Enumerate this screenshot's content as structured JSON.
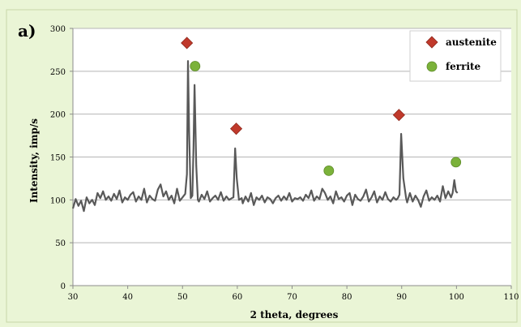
{
  "panel_label": "a)",
  "chart_data": {
    "type": "line",
    "title": "",
    "xlabel": "2 theta, degrees",
    "ylabel": "Intensity, imp/s",
    "xlim": [
      30,
      110
    ],
    "ylim": [
      0,
      300
    ],
    "x_ticks": [
      30,
      40,
      50,
      60,
      70,
      80,
      90,
      100,
      110
    ],
    "y_ticks": [
      0,
      50,
      100,
      150,
      200,
      250,
      300
    ],
    "grid": "horizontal",
    "legend_position": "top-right",
    "background_color": "#eaf5d6",
    "plot_background_color": "#ffffff",
    "series": [
      {
        "color": "#595959",
        "x": [
          30,
          30.5,
          31,
          31.5,
          32,
          32.5,
          33,
          33.5,
          34,
          34.5,
          35,
          35.5,
          36,
          36.5,
          37,
          37.5,
          38,
          38.5,
          39,
          39.5,
          40,
          40.5,
          41,
          41.5,
          42,
          42.5,
          43,
          43.5,
          44,
          44.5,
          45,
          45.5,
          46,
          46.5,
          47,
          47.5,
          48,
          48.5,
          49,
          49.5,
          50,
          50.5,
          50.8,
          51,
          51.2,
          51.5,
          51.8,
          52,
          52.2,
          52.5,
          52.8,
          53,
          53.5,
          54,
          54.5,
          55,
          55.5,
          56,
          56.5,
          57,
          57.5,
          58,
          58.5,
          59,
          59.3,
          59.6,
          59.9,
          60.3,
          60.8,
          61,
          61.5,
          62,
          62.5,
          63,
          63.5,
          64,
          64.5,
          65,
          65.5,
          66,
          66.5,
          67,
          67.5,
          68,
          68.5,
          69,
          69.5,
          70,
          70.5,
          71,
          71.5,
          72,
          72.5,
          73,
          73.5,
          74,
          74.5,
          75,
          75.5,
          76,
          76.5,
          77,
          77.5,
          78,
          78.5,
          79,
          79.5,
          80,
          80.5,
          81,
          81.5,
          82,
          82.5,
          83,
          83.5,
          84,
          84.5,
          85,
          85.5,
          86,
          86.5,
          87,
          87.5,
          88,
          88.5,
          89,
          89.3,
          89.6,
          89.9,
          90.3,
          90.8,
          91,
          91.5,
          92,
          92.5,
          93,
          93.5,
          94,
          94.5,
          95,
          95.5,
          96,
          96.5,
          97,
          97.5,
          98,
          98.5,
          99,
          99.3,
          99.6,
          99.9,
          100.2
        ],
        "y": [
          90,
          101,
          93,
          99,
          87,
          103,
          96,
          100,
          94,
          108,
          102,
          110,
          100,
          104,
          99,
          107,
          101,
          111,
          97,
          103,
          100,
          106,
          109,
          98,
          104,
          100,
          113,
          97,
          105,
          101,
          99,
          112,
          118,
          104,
          110,
          100,
          105,
          96,
          113,
          99,
          103,
          107,
          130,
          262,
          180,
          102,
          105,
          160,
          234,
          140,
          100,
          98,
          106,
          101,
          110,
          98,
          102,
          105,
          100,
          109,
          99,
          104,
          100,
          102,
          103,
          160,
          125,
          100,
          102,
          96,
          104,
          98,
          108,
          94,
          103,
          100,
          105,
          97,
          103,
          101,
          96,
          102,
          105,
          99,
          104,
          100,
          108,
          98,
          102,
          101,
          103,
          99,
          106,
          102,
          111,
          99,
          104,
          101,
          113,
          108,
          100,
          104,
          96,
          110,
          101,
          103,
          98,
          105,
          108,
          94,
          106,
          101,
          99,
          104,
          112,
          98,
          103,
          110,
          97,
          104,
          100,
          109,
          101,
          98,
          103,
          100,
          102,
          106,
          177,
          125,
          102,
          97,
          108,
          98,
          105,
          100,
          92,
          104,
          111,
          99,
          103,
          100,
          105,
          98,
          116,
          102,
          110,
          103,
          108,
          123,
          110,
          108
        ]
      }
    ],
    "markers": [
      {
        "name": "austenite",
        "shape": "diamond",
        "color": "#c0392b",
        "points": [
          [
            50.8,
            283
          ],
          [
            59.8,
            183
          ],
          [
            89.5,
            199
          ]
        ]
      },
      {
        "name": "ferrite",
        "shape": "circle",
        "color": "#7bb23a",
        "points": [
          [
            52.3,
            256
          ],
          [
            76.7,
            134
          ],
          [
            99.9,
            144
          ]
        ]
      }
    ]
  }
}
